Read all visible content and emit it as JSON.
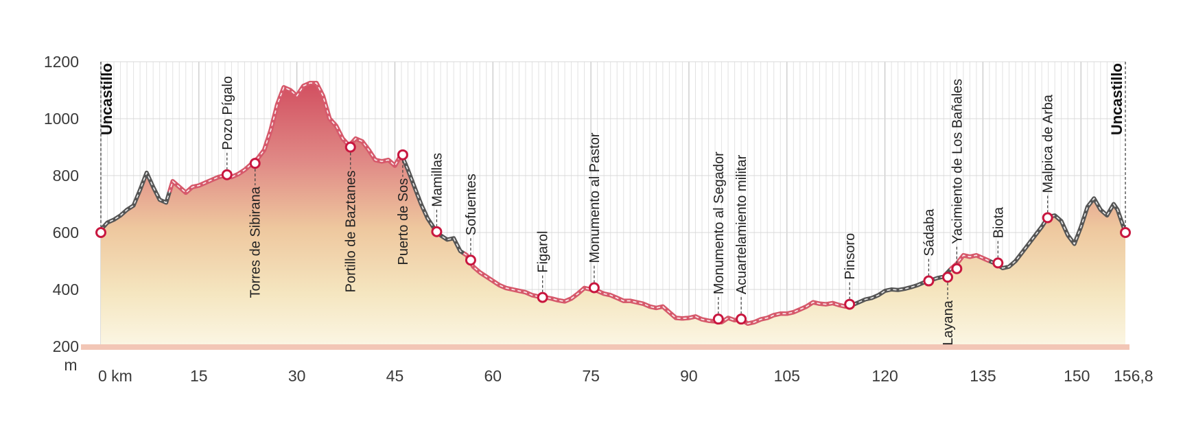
{
  "chart_data": {
    "type": "area",
    "ylabel": "m",
    "x_unit": "km",
    "ylim": [
      200,
      1200
    ],
    "xlim": [
      0,
      156.8
    ],
    "yticks": [
      200,
      400,
      600,
      800,
      1000,
      1200
    ],
    "xticks": [
      {
        "value": 0,
        "label": "0 km"
      },
      {
        "value": 15,
        "label": "15"
      },
      {
        "value": 30,
        "label": "30"
      },
      {
        "value": 45,
        "label": "45"
      },
      {
        "value": 60,
        "label": "60"
      },
      {
        "value": 75,
        "label": "75"
      },
      {
        "value": 90,
        "label": "90"
      },
      {
        "value": 105,
        "label": "105"
      },
      {
        "value": 120,
        "label": "120"
      },
      {
        "value": 135,
        "label": "135"
      },
      {
        "value": 150,
        "label": "150"
      },
      {
        "value": 156.8,
        "label": "156,8"
      }
    ],
    "grid": true,
    "colors": {
      "line_dark": "#555555",
      "line_red": "#d6596b",
      "marker": "#c8173f",
      "fill_top": "#d9606d",
      "fill_bottom": "#f3ecd0",
      "base": "#f2c6b6"
    },
    "profile": [
      [
        0,
        610
      ],
      [
        1,
        635
      ],
      [
        2,
        645
      ],
      [
        3,
        660
      ],
      [
        4,
        680
      ],
      [
        5,
        695
      ],
      [
        6,
        750
      ],
      [
        7,
        810
      ],
      [
        8,
        760
      ],
      [
        9,
        715
      ],
      [
        10,
        705
      ],
      [
        11,
        780
      ],
      [
        12,
        760
      ],
      [
        13,
        740
      ],
      [
        14,
        760
      ],
      [
        15,
        765
      ],
      [
        16,
        775
      ],
      [
        17,
        785
      ],
      [
        18,
        795
      ],
      [
        19,
        800
      ],
      [
        20,
        795
      ],
      [
        21,
        805
      ],
      [
        22,
        820
      ],
      [
        23,
        840
      ],
      [
        24,
        860
      ],
      [
        25,
        890
      ],
      [
        26,
        960
      ],
      [
        27,
        1050
      ],
      [
        28,
        1110
      ],
      [
        29,
        1100
      ],
      [
        30,
        1080
      ],
      [
        31,
        1115
      ],
      [
        32,
        1125
      ],
      [
        33,
        1125
      ],
      [
        34,
        1080
      ],
      [
        35,
        1000
      ],
      [
        36,
        975
      ],
      [
        37,
        930
      ],
      [
        38,
        905
      ],
      [
        39,
        930
      ],
      [
        40,
        920
      ],
      [
        41,
        890
      ],
      [
        42,
        855
      ],
      [
        43,
        850
      ],
      [
        44,
        855
      ],
      [
        45,
        835
      ],
      [
        46,
        875
      ],
      [
        47,
        820
      ],
      [
        48,
        760
      ],
      [
        49,
        700
      ],
      [
        50,
        650
      ],
      [
        51,
        615
      ],
      [
        52,
        590
      ],
      [
        53,
        575
      ],
      [
        54,
        580
      ],
      [
        55,
        535
      ],
      [
        56,
        520
      ],
      [
        57,
        480
      ],
      [
        58,
        460
      ],
      [
        59,
        445
      ],
      [
        60,
        430
      ],
      [
        61,
        415
      ],
      [
        62,
        405
      ],
      [
        63,
        400
      ],
      [
        64,
        395
      ],
      [
        65,
        390
      ],
      [
        66,
        380
      ],
      [
        67,
        375
      ],
      [
        68,
        372
      ],
      [
        69,
        368
      ],
      [
        70,
        362
      ],
      [
        71,
        358
      ],
      [
        72,
        368
      ],
      [
        73,
        385
      ],
      [
        74,
        405
      ],
      [
        75,
        400
      ],
      [
        76,
        395
      ],
      [
        77,
        385
      ],
      [
        78,
        380
      ],
      [
        79,
        370
      ],
      [
        80,
        360
      ],
      [
        81,
        360
      ],
      [
        82,
        355
      ],
      [
        83,
        350
      ],
      [
        84,
        340
      ],
      [
        85,
        335
      ],
      [
        86,
        340
      ],
      [
        87,
        320
      ],
      [
        88,
        300
      ],
      [
        89,
        298
      ],
      [
        90,
        300
      ],
      [
        91,
        305
      ],
      [
        92,
        295
      ],
      [
        93,
        290
      ],
      [
        94,
        288
      ],
      [
        95,
        285
      ],
      [
        96,
        300
      ],
      [
        97,
        292
      ],
      [
        98,
        295
      ],
      [
        99,
        280
      ],
      [
        100,
        285
      ],
      [
        101,
        295
      ],
      [
        102,
        300
      ],
      [
        103,
        310
      ],
      [
        104,
        315
      ],
      [
        105,
        315
      ],
      [
        106,
        320
      ],
      [
        107,
        330
      ],
      [
        108,
        340
      ],
      [
        109,
        355
      ],
      [
        110,
        350
      ],
      [
        111,
        348
      ],
      [
        112,
        352
      ],
      [
        113,
        345
      ],
      [
        114,
        340
      ],
      [
        115,
        345
      ],
      [
        116,
        355
      ],
      [
        117,
        365
      ],
      [
        118,
        370
      ],
      [
        119,
        380
      ],
      [
        120,
        395
      ],
      [
        121,
        400
      ],
      [
        122,
        398
      ],
      [
        123,
        402
      ],
      [
        124,
        408
      ],
      [
        125,
        415
      ],
      [
        126,
        425
      ],
      [
        127,
        432
      ],
      [
        128,
        440
      ],
      [
        129,
        445
      ],
      [
        130,
        470
      ],
      [
        131,
        490
      ],
      [
        132,
        520
      ],
      [
        133,
        515
      ],
      [
        134,
        520
      ],
      [
        135,
        510
      ],
      [
        136,
        500
      ],
      [
        137,
        490
      ],
      [
        138,
        475
      ],
      [
        139,
        480
      ],
      [
        140,
        500
      ],
      [
        141,
        530
      ],
      [
        142,
        560
      ],
      [
        143,
        590
      ],
      [
        144,
        620
      ],
      [
        145,
        655
      ],
      [
        146,
        660
      ],
      [
        147,
        640
      ],
      [
        148,
        590
      ],
      [
        149,
        560
      ],
      [
        150,
        620
      ],
      [
        151,
        690
      ],
      [
        152,
        720
      ],
      [
        153,
        680
      ],
      [
        154,
        660
      ],
      [
        155,
        700
      ],
      [
        155.6,
        680
      ],
      [
        156.2,
        640
      ],
      [
        156.8,
        600
      ]
    ],
    "red_segments": [
      [
        10.5,
        45.8
      ],
      [
        55.5,
        114.6
      ],
      [
        130,
        136
      ]
    ],
    "waypoints": [
      {
        "name": "Uncastillo",
        "km": 0,
        "elev": 600,
        "label_side": "above",
        "bold": true
      },
      {
        "name": "Pozo Pígalo",
        "km": 19.3,
        "elev": 803,
        "label_side": "above",
        "bold": false
      },
      {
        "name": "Torres de Sibirana",
        "km": 23.6,
        "elev": 843,
        "label_side": "below",
        "bold": false
      },
      {
        "name": "Portillo de Baztanes",
        "km": 38.2,
        "elev": 900,
        "label_side": "below",
        "bold": false
      },
      {
        "name": "Puerto de Sos",
        "km": 46.2,
        "elev": 873,
        "label_side": "below",
        "bold": false
      },
      {
        "name": "Mamillas",
        "km": 51.4,
        "elev": 603,
        "label_side": "above",
        "bold": false
      },
      {
        "name": "Sofuentes",
        "km": 56.6,
        "elev": 503,
        "label_side": "above",
        "bold": false
      },
      {
        "name": "Figarol",
        "km": 67.6,
        "elev": 372,
        "label_side": "above",
        "bold": false
      },
      {
        "name": "Monumento al Pastor",
        "km": 75.5,
        "elev": 406,
        "label_side": "above",
        "bold": false
      },
      {
        "name": "Monumento al Segador",
        "km": 94.5,
        "elev": 296,
        "label_side": "above",
        "bold": false
      },
      {
        "name": "Acuartelamiento militar",
        "km": 98.0,
        "elev": 296,
        "label_side": "above",
        "bold": false
      },
      {
        "name": "Pinsoro",
        "km": 114.6,
        "elev": 348,
        "label_side": "above",
        "bold": false
      },
      {
        "name": "Sádaba",
        "km": 126.7,
        "elev": 430,
        "label_side": "above",
        "bold": false
      },
      {
        "name": "Layana",
        "km": 129.6,
        "elev": 443,
        "label_side": "below",
        "bold": false
      },
      {
        "name": "Yacimiento de Los Bañales",
        "km": 131.0,
        "elev": 473,
        "label_side": "above",
        "bold": false
      },
      {
        "name": "Biota",
        "km": 137.3,
        "elev": 493,
        "label_side": "above",
        "bold": false
      },
      {
        "name": "Malpica de Arba",
        "km": 144.9,
        "elev": 652,
        "label_side": "above",
        "bold": false
      },
      {
        "name": "Uncastillo",
        "km": 156.8,
        "elev": 600,
        "label_side": "above",
        "bold": true
      }
    ]
  }
}
